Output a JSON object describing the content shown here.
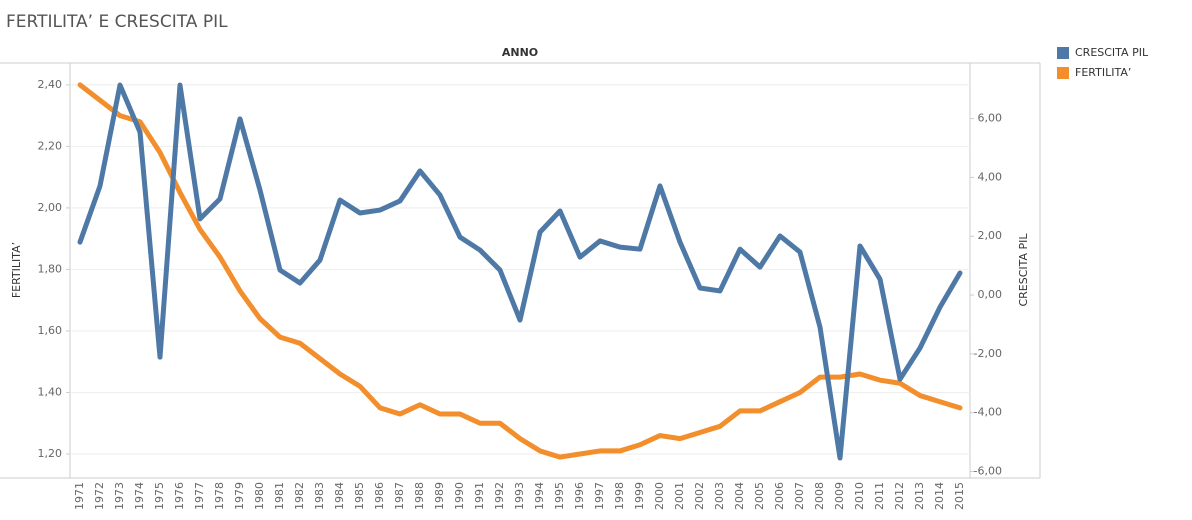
{
  "chart_data": {
    "type": "line",
    "title": "FERTILITA’ E CRESCITA PIL",
    "x_label": "ANNO",
    "y_label": "FERTILITA’",
    "y2_label": "CRESCITA PIL",
    "categories": [
      "1971",
      "1972",
      "1973",
      "1974",
      "1975",
      "1976",
      "1977",
      "1978",
      "1979",
      "1980",
      "1981",
      "1982",
      "1983",
      "1984",
      "1985",
      "1986",
      "1987",
      "1988",
      "1989",
      "1990",
      "1991",
      "1992",
      "1993",
      "1994",
      "1995",
      "1996",
      "1997",
      "1998",
      "1999",
      "2000",
      "2001",
      "2002",
      "2003",
      "2004",
      "2005",
      "2006",
      "2007",
      "2008",
      "2009",
      "2010",
      "2011",
      "2012",
      "2013",
      "2014",
      "2015"
    ],
    "series": [
      {
        "name": "CRESCITA PIL",
        "color": "#4e79a7",
        "axis": "y2",
        "values": [
          1.8,
          3.71,
          7.14,
          5.54,
          -2.11,
          7.14,
          2.59,
          3.27,
          5.99,
          3.57,
          0.85,
          0.41,
          1.19,
          3.23,
          2.79,
          2.89,
          3.2,
          4.22,
          3.4,
          1.97,
          1.53,
          0.85,
          -0.85,
          2.14,
          2.86,
          1.29,
          1.84,
          1.63,
          1.56,
          3.71,
          1.8,
          0.24,
          0.14,
          1.56,
          0.95,
          2.01,
          1.46,
          -1.09,
          -5.54,
          1.67,
          0.54,
          -2.86,
          -1.8,
          -0.41,
          0.75
        ]
      },
      {
        "name": "FERTILITA’",
        "color": "#f28e2b",
        "values": [
          2.4,
          2.35,
          2.3,
          2.28,
          2.18,
          2.05,
          1.93,
          1.84,
          1.73,
          1.64,
          1.58,
          1.56,
          1.51,
          1.46,
          1.42,
          1.35,
          1.33,
          1.36,
          1.33,
          1.33,
          1.3,
          1.3,
          1.25,
          1.21,
          1.19,
          1.2,
          1.21,
          1.21,
          1.23,
          1.26,
          1.25,
          1.27,
          1.29,
          1.34,
          1.34,
          1.37,
          1.4,
          1.45,
          1.45,
          1.46,
          1.44,
          1.43,
          1.39,
          1.37,
          1.35
        ]
      }
    ],
    "ylim": [
      1.122,
      2.471
    ],
    "yticks": [
      {
        "value": 1.2,
        "label": "1,20"
      },
      {
        "value": 1.4,
        "label": "1,40"
      },
      {
        "value": 1.6,
        "label": "1,60"
      },
      {
        "value": 1.8,
        "label": "1,80"
      },
      {
        "value": 2.0,
        "label": "2,00"
      },
      {
        "value": 2.2,
        "label": "2,20"
      },
      {
        "value": 2.4,
        "label": "2,40"
      }
    ],
    "y2lim": [
      -6.22,
      7.89
    ],
    "y2ticks": [
      {
        "value": -6,
        "label": "-6,00"
      },
      {
        "value": -4,
        "label": "-4,00"
      },
      {
        "value": -2,
        "label": "-2,00"
      },
      {
        "value": 0,
        "label": "0,00"
      },
      {
        "value": 2,
        "label": "2,00"
      },
      {
        "value": 4,
        "label": "4,00"
      },
      {
        "value": 6,
        "label": "6,00"
      }
    ],
    "grid": true
  }
}
